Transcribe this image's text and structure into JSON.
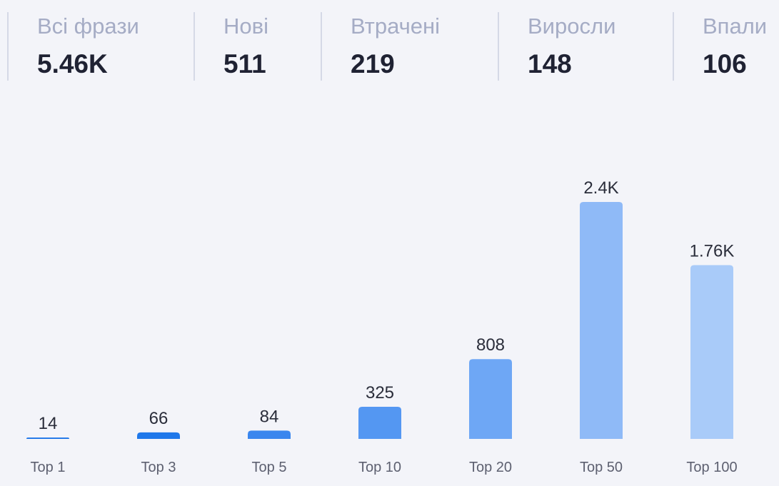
{
  "stats": [
    {
      "label": "Всі фрази",
      "value": "5.46K"
    },
    {
      "label": "Нові",
      "value": "511"
    },
    {
      "label": "Втрачені",
      "value": "219"
    },
    {
      "label": "Виросли",
      "value": "148"
    },
    {
      "label": "Впали",
      "value": "106"
    }
  ],
  "chart_data": {
    "type": "bar",
    "categories": [
      "Top 1",
      "Top 3",
      "Top 5",
      "Top 10",
      "Top 20",
      "Top 50",
      "Top 100"
    ],
    "values": [
      14,
      66,
      84,
      325,
      808,
      2400,
      1760
    ],
    "value_labels": [
      "14",
      "66",
      "84",
      "325",
      "808",
      "2.4K",
      "1.76K"
    ],
    "colors": [
      "#1a73e8",
      "#1f78ea",
      "#3a86ee",
      "#5497f2",
      "#6ea7f5",
      "#8fbaf7",
      "#a9cbf9"
    ]
  }
}
